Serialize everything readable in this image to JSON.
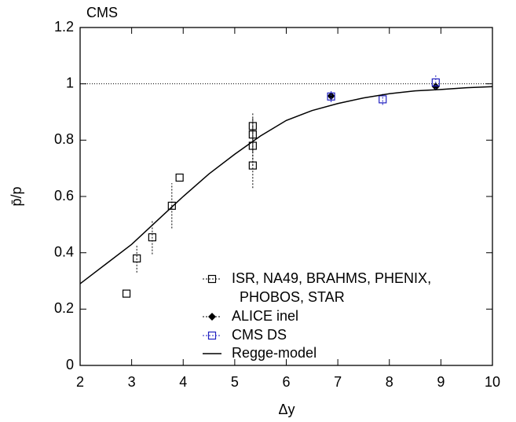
{
  "chart_data": {
    "type": "scatter",
    "annotation": "CMS",
    "x_label": "Δy",
    "y_label": "p̄/p",
    "xlim": [
      2,
      10
    ],
    "ylim": [
      0,
      1.2
    ],
    "xticks": [
      2,
      3,
      4,
      5,
      6,
      7,
      8,
      9,
      10
    ],
    "yticks": [
      0,
      0.2,
      0.4,
      0.6,
      0.8,
      1,
      1.2
    ],
    "reference_line": 1,
    "series": [
      {
        "name": [
          "ISR, NA49, BRAHMS, PHENIX,",
          "PHOBOS, STAR"
        ],
        "color": "#000000",
        "marker": "square",
        "x": [
          2.9,
          3.1,
          3.4,
          3.78,
          3.93,
          5.35,
          5.35,
          5.35,
          5.35
        ],
        "values": [
          0.255,
          0.38,
          0.455,
          0.567,
          0.667,
          0.85,
          0.82,
          0.78,
          0.71
        ],
        "errors": [
          0,
          0.05,
          0.06,
          0.08,
          0,
          0.05,
          0.06,
          0.07,
          0.08
        ]
      },
      {
        "name": "ALICE inel",
        "color": "#000000",
        "marker": "diamond",
        "x": [
          6.87,
          8.9
        ],
        "values": [
          0.957,
          0.99
        ],
        "errors": [
          0.01,
          0.01
        ]
      },
      {
        "name": "CMS DS",
        "color": "#2020c0",
        "marker": "square",
        "x": [
          6.87,
          7.87,
          8.9
        ],
        "values": [
          0.955,
          0.945,
          1.005
        ],
        "errors": [
          0.02,
          0.02,
          0.025
        ]
      },
      {
        "name": "Regge-model",
        "color": "#000000",
        "marker": "line",
        "x": [
          2,
          2.5,
          3,
          3.5,
          4,
          4.5,
          5,
          5.5,
          6,
          6.5,
          7,
          7.5,
          8,
          8.5,
          9,
          9.5,
          10
        ],
        "values": [
          0.29,
          0.36,
          0.43,
          0.515,
          0.6,
          0.68,
          0.75,
          0.815,
          0.87,
          0.905,
          0.93,
          0.95,
          0.965,
          0.975,
          0.98,
          0.986,
          0.99
        ]
      }
    ]
  }
}
